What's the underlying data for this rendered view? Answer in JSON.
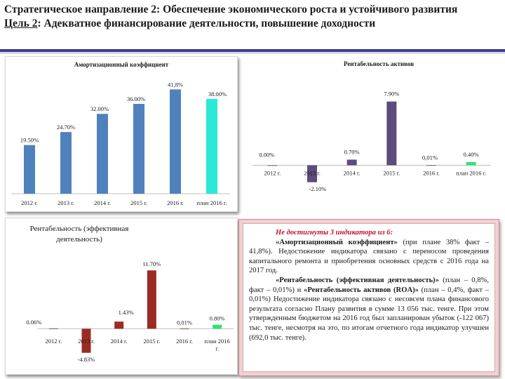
{
  "header": {
    "title": "Стратегическое направление 2: Обеспечение экономического роста и устойчивого развития",
    "goal_label": "Цель 2",
    "goal_text": ": Адекватное финансирование деятельности, повышение доходности"
  },
  "colors": {
    "blue": "#4f81bd",
    "cyan": "#2ce8d8",
    "purple": "#5c4b7d",
    "darkred": "#9b2c24",
    "green": "#33e07a"
  },
  "chart_data": [
    {
      "type": "bar",
      "title": "Амортизационный коэффициент",
      "categories": [
        "2012 г.",
        "2013 г.",
        "2014 г.",
        "2015 г.",
        "2016 г.",
        "план 2016 г."
      ],
      "values": [
        19.5,
        24.7,
        32.0,
        36.0,
        41.8,
        38.0
      ],
      "labels": [
        "19.50%",
        "24.70%",
        "32.00%",
        "36.00%",
        "41,8%",
        "38.00%"
      ],
      "ylim": [
        0,
        45
      ]
    },
    {
      "type": "bar",
      "title": "Рентабельность активов",
      "categories": [
        "2012 г.",
        "2013 г.",
        "2014 г.",
        "2015 г.",
        "2016 г.",
        "план 2016 г."
      ],
      "values": [
        0.0,
        -2.1,
        0.7,
        7.9,
        0.01,
        0.4
      ],
      "labels": [
        "0.00%",
        "-2.10%",
        "0.70%",
        "7.90%",
        "0,01%",
        "0.40%"
      ],
      "ylim": [
        -3,
        9
      ]
    },
    {
      "type": "bar",
      "title": "Рентабельность (эффективная деятельность)",
      "categories": [
        "2012 г.",
        "2013 г.",
        "2014 г.",
        "2015 г.",
        "2016 г.",
        "план 2016 г."
      ],
      "values": [
        0.06,
        -4.83,
        1.43,
        11.7,
        0.01,
        0.8
      ],
      "labels": [
        "0.06%",
        "-4.83%",
        "1.43%",
        "11.70%",
        "0,01%",
        "0.80%"
      ],
      "ylim": [
        -6,
        13
      ]
    }
  ],
  "note": {
    "heading": "Не достигнуты 3 индикатора из 6:",
    "p1_bold": "«Амортизационный коэффициент»",
    "p1_text": " (при плане 38% факт – 41,8%). Недостижение индикатора связано с переносом проведения капитального ремонта и приобретения основных средств с 2016 года на 2017 год.",
    "p2_bold1": "«Рентабельность (эффективная деятельность)»",
    "p2_text1": " (план – 0,8%, факт – 0,01%) и ",
    "p2_bold2": "«Рентабельность активов (ROA)»",
    "p2_text2": " (план – 0,4%, факт – 0,01%) Недостижение индикатора связано с несовсем плана финансового результата согласно Плану развития в сумме 13 056 тыс. тенге. При этом утвержденным бюджетом на 2016 год был запланирован убыток (-122 067) тыс. тенге, несмотря на это, по итогам отчетного года индикатор улучшен (692,0 тыс. тенге)."
  }
}
